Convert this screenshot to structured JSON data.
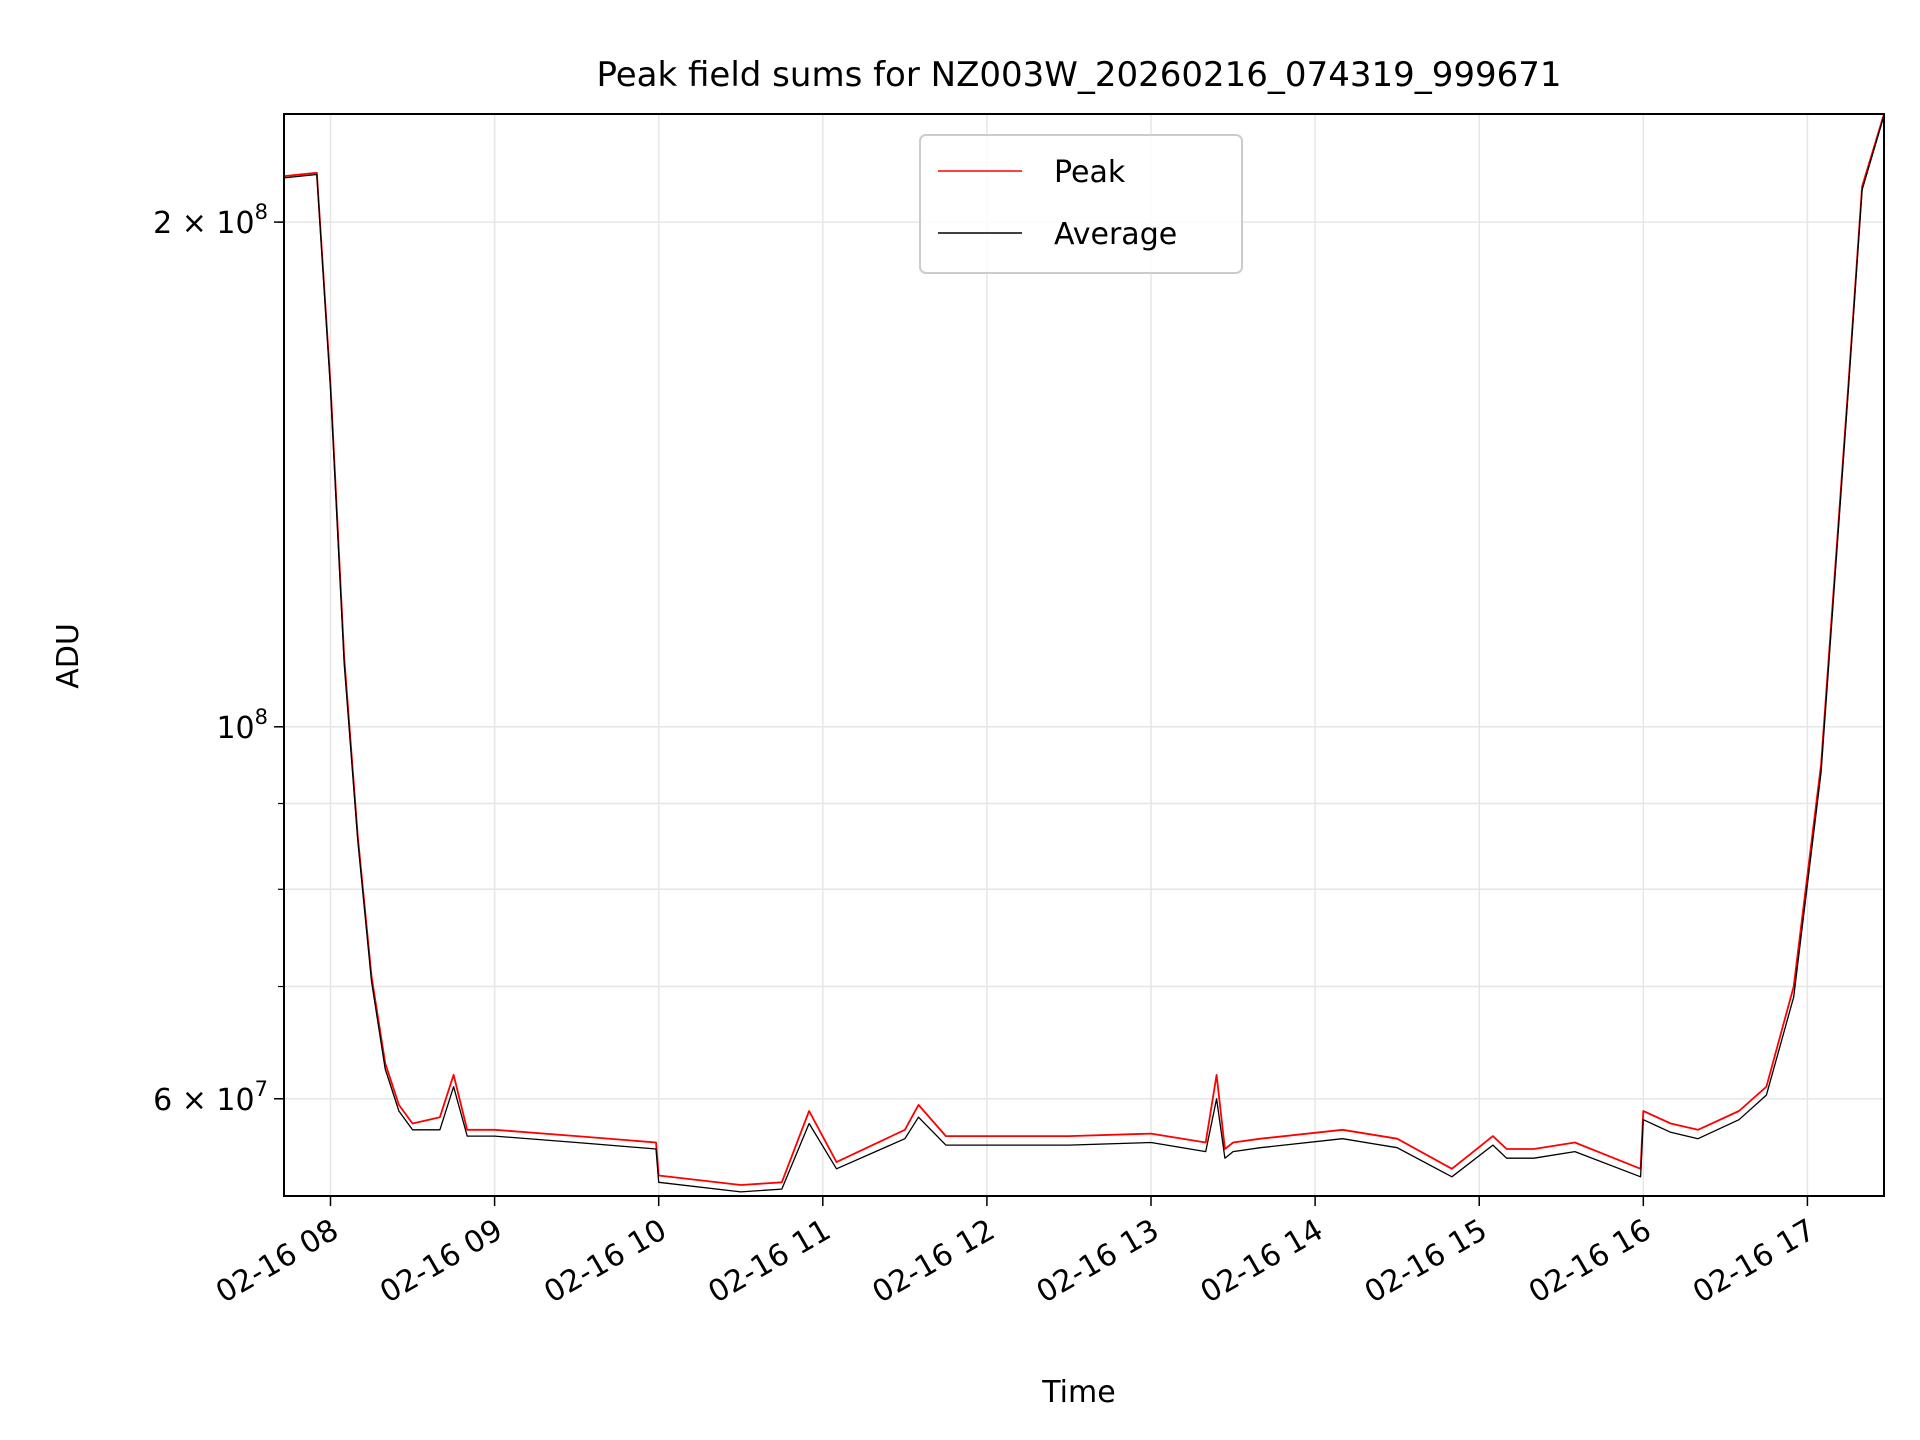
{
  "chart_data": {
    "type": "line",
    "title": "Peak field sums for NZ003W_20260216_074319_999671",
    "xlabel": "Time",
    "ylabel": "ADU",
    "y_scale": "log",
    "xlim": [
      "2026-02-16 07:43",
      "2026-02-16 17:28"
    ],
    "ylim": [
      52500000,
      232000000
    ],
    "x_ticks": [
      "02-16 08",
      "02-16 09",
      "02-16 10",
      "02-16 11",
      "02-16 12",
      "02-16 13",
      "02-16 14",
      "02-16 15",
      "02-16 16",
      "02-16 17"
    ],
    "y_ticks": [
      {
        "value": 60000000,
        "label_base": "6 × 10",
        "label_exp": "7"
      },
      {
        "value": 100000000,
        "label_base": "10",
        "label_exp": "8"
      },
      {
        "value": 200000000,
        "label_base": "2 × 10",
        "label_exp": "8"
      }
    ],
    "grid": true,
    "legend_position": "upper center",
    "series": [
      {
        "name": "Peak",
        "color": "#ff0000",
        "x": [
          "2026-02-16 07:43",
          "2026-02-16 07:55",
          "2026-02-16 08:00",
          "2026-02-16 08:05",
          "2026-02-16 08:10",
          "2026-02-16 08:15",
          "2026-02-16 08:20",
          "2026-02-16 08:25",
          "2026-02-16 08:30",
          "2026-02-16 08:40",
          "2026-02-16 08:45",
          "2026-02-16 08:50",
          "2026-02-16 09:00",
          "2026-02-16 09:30",
          "2026-02-16 09:59",
          "2026-02-16 10:00",
          "2026-02-16 10:30",
          "2026-02-16 10:45",
          "2026-02-16 10:55",
          "2026-02-16 11:05",
          "2026-02-16 11:30",
          "2026-02-16 11:35",
          "2026-02-16 11:45",
          "2026-02-16 12:00",
          "2026-02-16 12:30",
          "2026-02-16 13:00",
          "2026-02-16 13:20",
          "2026-02-16 13:24",
          "2026-02-16 13:27",
          "2026-02-16 13:30",
          "2026-02-16 13:40",
          "2026-02-16 14:10",
          "2026-02-16 14:30",
          "2026-02-16 14:50",
          "2026-02-16 15:05",
          "2026-02-16 15:10",
          "2026-02-16 15:20",
          "2026-02-16 15:35",
          "2026-02-16 15:59",
          "2026-02-16 16:00",
          "2026-02-16 16:10",
          "2026-02-16 16:20",
          "2026-02-16 16:35",
          "2026-02-16 16:45",
          "2026-02-16 16:55",
          "2026-02-16 17:05",
          "2026-02-16 17:15",
          "2026-02-16 17:20",
          "2026-02-16 17:28"
        ],
        "y": [
          213000000,
          214000000,
          160000000,
          110000000,
          86000000,
          71000000,
          63000000,
          59500000,
          58000000,
          58500000,
          62000000,
          57500000,
          57500000,
          57000000,
          56500000,
          54000000,
          53300000,
          53500000,
          59000000,
          55000000,
          57500000,
          59500000,
          57000000,
          57000000,
          57000000,
          57200000,
          56500000,
          62000000,
          56000000,
          56500000,
          56800000,
          57500000,
          56800000,
          54500000,
          57000000,
          56000000,
          56000000,
          56500000,
          54500000,
          59000000,
          58000000,
          57500000,
          59000000,
          61000000,
          70000000,
          95000000,
          160000000,
          210000000,
          232000000
        ]
      },
      {
        "name": "Average",
        "color": "#000000",
        "x": [
          "2026-02-16 07:43",
          "2026-02-16 07:55",
          "2026-02-16 08:00",
          "2026-02-16 08:05",
          "2026-02-16 08:10",
          "2026-02-16 08:15",
          "2026-02-16 08:20",
          "2026-02-16 08:25",
          "2026-02-16 08:30",
          "2026-02-16 08:40",
          "2026-02-16 08:45",
          "2026-02-16 08:50",
          "2026-02-16 09:00",
          "2026-02-16 09:30",
          "2026-02-16 09:59",
          "2026-02-16 10:00",
          "2026-02-16 10:30",
          "2026-02-16 10:45",
          "2026-02-16 10:55",
          "2026-02-16 11:05",
          "2026-02-16 11:30",
          "2026-02-16 11:35",
          "2026-02-16 11:45",
          "2026-02-16 12:00",
          "2026-02-16 12:30",
          "2026-02-16 13:00",
          "2026-02-16 13:20",
          "2026-02-16 13:24",
          "2026-02-16 13:27",
          "2026-02-16 13:30",
          "2026-02-16 13:40",
          "2026-02-16 14:10",
          "2026-02-16 14:30",
          "2026-02-16 14:50",
          "2026-02-16 15:05",
          "2026-02-16 15:10",
          "2026-02-16 15:20",
          "2026-02-16 15:35",
          "2026-02-16 15:59",
          "2026-02-16 16:00",
          "2026-02-16 16:10",
          "2026-02-16 16:20",
          "2026-02-16 16:35",
          "2026-02-16 16:45",
          "2026-02-16 16:55",
          "2026-02-16 17:05",
          "2026-02-16 17:15",
          "2026-02-16 17:20",
          "2026-02-16 17:28"
        ],
        "y": [
          212500000,
          213500000,
          159000000,
          109000000,
          85500000,
          70500000,
          62500000,
          59000000,
          57500000,
          57500000,
          61000000,
          57000000,
          57000000,
          56500000,
          56000000,
          53500000,
          52800000,
          53000000,
          58000000,
          54500000,
          56800000,
          58500000,
          56300000,
          56300000,
          56300000,
          56500000,
          55800000,
          60000000,
          55300000,
          55800000,
          56100000,
          56800000,
          56100000,
          53900000,
          56300000,
          55300000,
          55300000,
          55800000,
          53900000,
          58300000,
          57300000,
          56800000,
          58300000,
          60300000,
          69000000,
          94000000,
          159000000,
          209000000,
          231500000
        ]
      }
    ]
  }
}
